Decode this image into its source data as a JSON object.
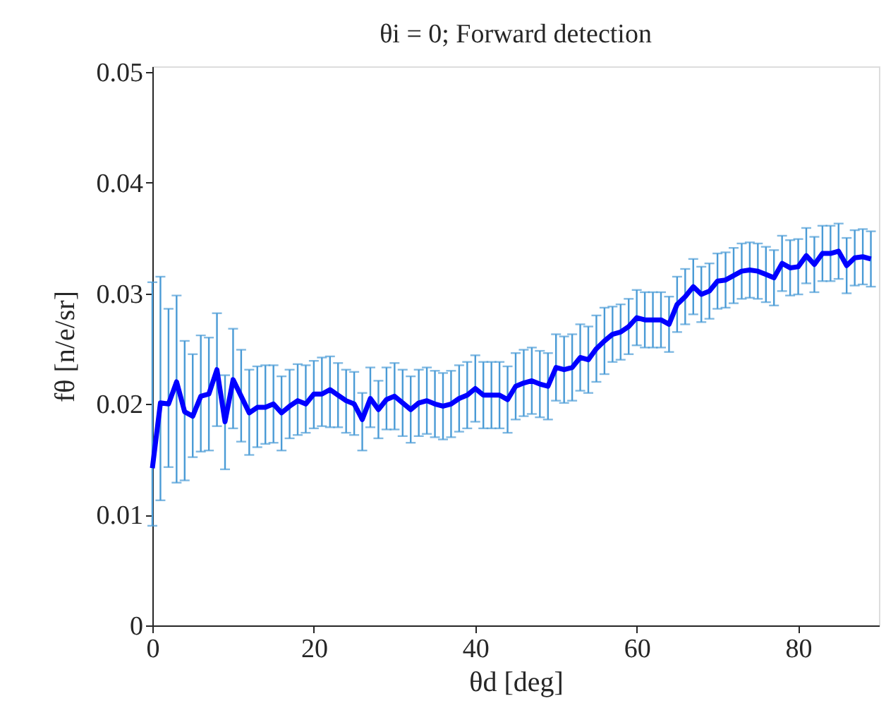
{
  "chart_data": {
    "type": "line",
    "title": "θi = 0; Forward detection",
    "xlabel": "θd [deg]",
    "ylabel": "fθ [n/e/sr]",
    "x": [
      0,
      1,
      2,
      3,
      4,
      5,
      6,
      7,
      8,
      9,
      10,
      11,
      12,
      13,
      14,
      15,
      16,
      17,
      18,
      19,
      20,
      21,
      22,
      23,
      24,
      25,
      26,
      27,
      28,
      29,
      30,
      31,
      32,
      33,
      34,
      35,
      36,
      37,
      38,
      39,
      40,
      41,
      42,
      43,
      44,
      45,
      46,
      47,
      48,
      49,
      50,
      51,
      52,
      53,
      54,
      55,
      56,
      57,
      58,
      59,
      60,
      61,
      62,
      63,
      64,
      65,
      66,
      67,
      68,
      69,
      70,
      71,
      72,
      73,
      74,
      75,
      76,
      77,
      78,
      79,
      80,
      81,
      82,
      83,
      84,
      85,
      86,
      87,
      88,
      89
    ],
    "series": [
      {
        "color": "#0000ff",
        "values": [
          0.0142,
          0.0201,
          0.02,
          0.022,
          0.0193,
          0.0189,
          0.0207,
          0.0209,
          0.0231,
          0.0184,
          0.0222,
          0.0207,
          0.0192,
          0.0197,
          0.0197,
          0.02,
          0.0192,
          0.0198,
          0.0203,
          0.02,
          0.0209,
          0.0209,
          0.0213,
          0.0208,
          0.0203,
          0.02,
          0.0186,
          0.0205,
          0.0195,
          0.0204,
          0.0207,
          0.0201,
          0.0195,
          0.0201,
          0.0203,
          0.02,
          0.0198,
          0.02,
          0.0205,
          0.0208,
          0.0214,
          0.0208,
          0.0208,
          0.0208,
          0.0204,
          0.0216,
          0.0219,
          0.0221,
          0.0218,
          0.0216,
          0.0233,
          0.0231,
          0.0233,
          0.0242,
          0.024,
          0.025,
          0.0257,
          0.0263,
          0.0265,
          0.027,
          0.0278,
          0.0276,
          0.0276,
          0.0276,
          0.0272,
          0.029,
          0.0297,
          0.0306,
          0.0299,
          0.0302,
          0.0311,
          0.0312,
          0.0316,
          0.032,
          0.0321,
          0.032,
          0.0317,
          0.0314,
          0.0327,
          0.0323,
          0.0324,
          0.0334,
          0.0326,
          0.0336,
          0.0336,
          0.0338,
          0.0325,
          0.0332,
          0.0333,
          0.0331
        ],
        "errors": [
          [
            0.009,
            0.031
          ],
          [
            0.0113,
            0.0315
          ],
          [
            0.0143,
            0.0286
          ],
          [
            0.0129,
            0.0298
          ],
          [
            0.0131,
            0.0257
          ],
          [
            0.0152,
            0.0245
          ],
          [
            0.0157,
            0.0262
          ],
          [
            0.0158,
            0.026
          ],
          [
            0.018,
            0.0282
          ],
          [
            0.0141,
            0.0226
          ],
          [
            0.0178,
            0.0268
          ],
          [
            0.0166,
            0.0249
          ],
          [
            0.0154,
            0.0231
          ],
          [
            0.0161,
            0.0234
          ],
          [
            0.0164,
            0.0235
          ],
          [
            0.0165,
            0.0235
          ],
          [
            0.0158,
            0.0225
          ],
          [
            0.0169,
            0.0231
          ],
          [
            0.0172,
            0.0236
          ],
          [
            0.0174,
            0.0235
          ],
          [
            0.0178,
            0.0239
          ],
          [
            0.018,
            0.0242
          ],
          [
            0.0179,
            0.0243
          ],
          [
            0.0179,
            0.0237
          ],
          [
            0.0174,
            0.0231
          ],
          [
            0.0172,
            0.0229
          ],
          [
            0.0158,
            0.021
          ],
          [
            0.0179,
            0.0233
          ],
          [
            0.0169,
            0.0221
          ],
          [
            0.0177,
            0.0233
          ],
          0.003,
          0.003,
          0.003,
          0.003,
          0.003,
          0.003,
          0.003,
          0.003,
          0.003,
          0.003,
          0.003,
          0.003,
          0.003,
          0.003,
          0.003,
          0.003,
          0.003,
          0.003,
          0.003,
          0.003,
          0.003,
          0.003,
          0.003,
          0.003,
          0.003,
          0.003,
          0.003,
          0.0025,
          0.0025,
          0.0025,
          0.0025,
          0.0025,
          0.0025,
          0.0025,
          0.0025,
          0.0025,
          0.0025,
          0.0025,
          0.0025,
          0.0025,
          0.0025,
          0.0025,
          0.0025,
          0.0025,
          0.0025,
          0.0025,
          0.0025,
          0.0025,
          0.0025,
          0.0025,
          0.0025,
          0.0025,
          0.0025,
          0.0025,
          0.0025,
          0.0025,
          0.0025,
          0.0025,
          0.0025,
          0.0025
        ]
      }
    ],
    "xlim": [
      0,
      90
    ],
    "xticks": [
      0,
      20,
      40,
      60,
      80
    ],
    "ylim": [
      0,
      0.0505
    ],
    "yticks": [
      0,
      0.01,
      0.02,
      0.03,
      0.04,
      0.05
    ],
    "grid": false,
    "marker": "none",
    "line_style": "solid"
  }
}
